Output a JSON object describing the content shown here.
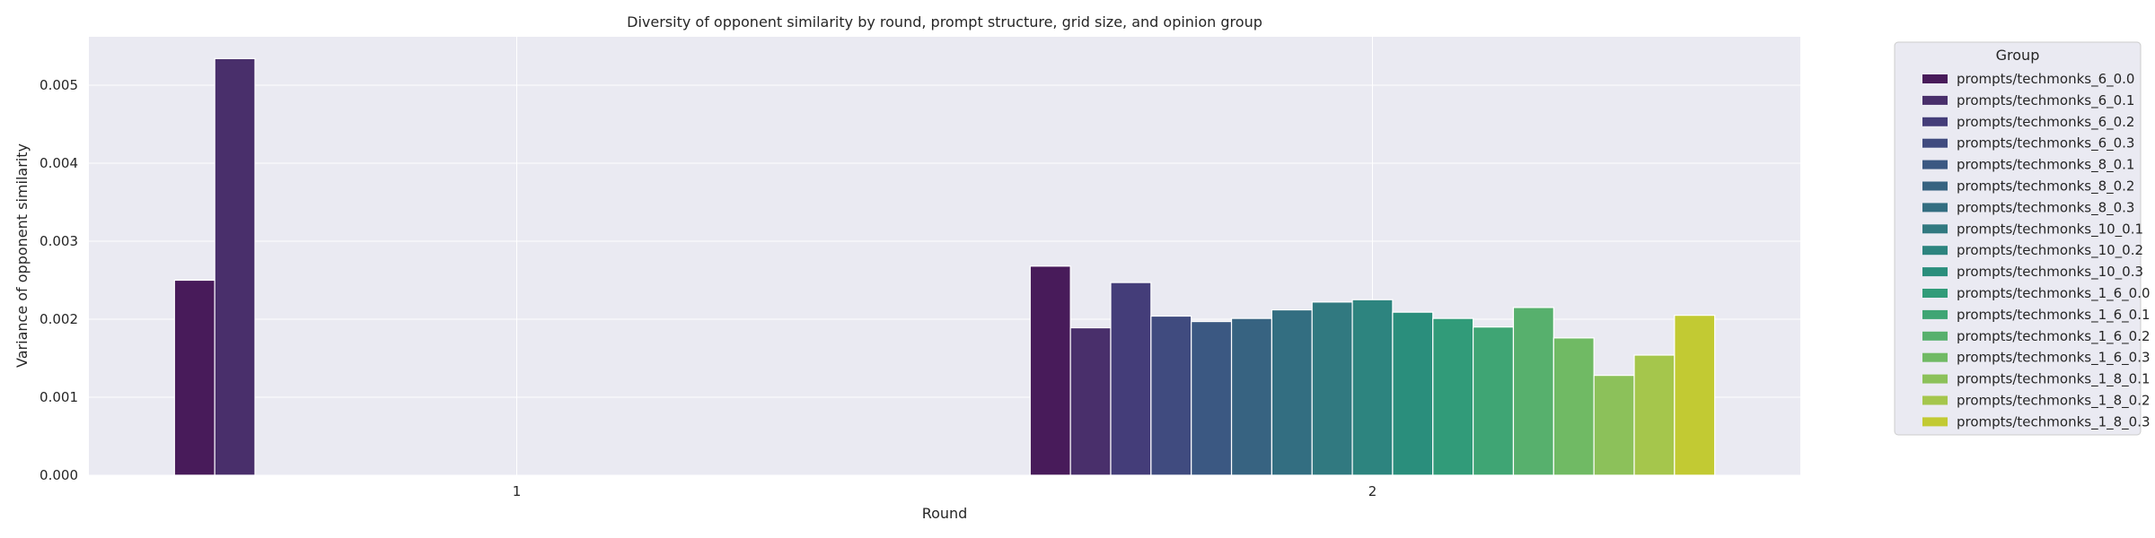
{
  "chart_data": {
    "type": "bar",
    "title": "Diversity of opponent similarity by round, prompt structure, grid size, and opinion group",
    "xlabel": "Round",
    "ylabel": "Variance of opponent similarity",
    "ylim": [
      0,
      0.00562
    ],
    "yticks": [
      "0.000",
      "0.001",
      "0.002",
      "0.003",
      "0.004",
      "0.005"
    ],
    "categories": [
      "1",
      "2"
    ],
    "grid": true,
    "legend_title": "Group",
    "legend_position": "outside-right",
    "bars": [
      {
        "group": "prompts/techmonks_6_0.0",
        "round": "1",
        "slot": 0,
        "value": 0.0025
      },
      {
        "group": "prompts/techmonks_6_0.1",
        "round": "1",
        "slot": 1,
        "value": 0.00534
      },
      {
        "group": "prompts/techmonks_6_0.0",
        "round": "2",
        "slot": 0,
        "value": 0.00268
      },
      {
        "group": "prompts/techmonks_6_0.1",
        "round": "2",
        "slot": 1,
        "value": 0.00189
      },
      {
        "group": "prompts/techmonks_6_0.2",
        "round": "2",
        "slot": 2,
        "value": 0.00247
      },
      {
        "group": "prompts/techmonks_6_0.3",
        "round": "2",
        "slot": 3,
        "value": 0.00204
      },
      {
        "group": "prompts/techmonks_8_0.1",
        "round": "2",
        "slot": 4,
        "value": 0.00197
      },
      {
        "group": "prompts/techmonks_8_0.2",
        "round": "2",
        "slot": 5,
        "value": 0.00201
      },
      {
        "group": "prompts/techmonks_8_0.3",
        "round": "2",
        "slot": 6,
        "value": 0.00212
      },
      {
        "group": "prompts/techmonks_10_0.1",
        "round": "2",
        "slot": 7,
        "value": 0.00222
      },
      {
        "group": "prompts/techmonks_10_0.2",
        "round": "2",
        "slot": 8,
        "value": 0.00225
      },
      {
        "group": "prompts/techmonks_10_0.3",
        "round": "2",
        "slot": 9,
        "value": 0.00209
      },
      {
        "group": "prompts/techmonks_1_6_0.0",
        "round": "2",
        "slot": 10,
        "value": 0.00201
      },
      {
        "group": "prompts/techmonks_1_6_0.1",
        "round": "2",
        "slot": 11,
        "value": 0.0019
      },
      {
        "group": "prompts/techmonks_1_6_0.2",
        "round": "2",
        "slot": 12,
        "value": 0.00215
      },
      {
        "group": "prompts/techmonks_1_6_0.3",
        "round": "2",
        "slot": 13,
        "value": 0.00176
      },
      {
        "group": "prompts/techmonks_1_8_0.1",
        "round": "2",
        "slot": 14,
        "value": 0.00128
      },
      {
        "group": "prompts/techmonks_1_8_0.2",
        "round": "2",
        "slot": 15,
        "value": 0.00154
      },
      {
        "group": "prompts/techmonks_1_8_0.3",
        "round": "2",
        "slot": 16,
        "value": 0.00205
      }
    ],
    "series": [
      {
        "name": "prompts/techmonks_6_0.0",
        "color": "#481b5a"
      },
      {
        "name": "prompts/techmonks_6_0.1",
        "color": "#492f6b"
      },
      {
        "name": "prompts/techmonks_6_0.2",
        "color": "#443d79"
      },
      {
        "name": "prompts/techmonks_6_0.3",
        "color": "#404b7f"
      },
      {
        "name": "prompts/techmonks_8_0.1",
        "color": "#3b5882"
      },
      {
        "name": "prompts/techmonks_8_0.2",
        "color": "#376381"
      },
      {
        "name": "prompts/techmonks_8_0.3",
        "color": "#336e81"
      },
      {
        "name": "prompts/techmonks_10_0.1",
        "color": "#317980"
      },
      {
        "name": "prompts/techmonks_10_0.2",
        "color": "#2d847f"
      },
      {
        "name": "prompts/techmonks_10_0.3",
        "color": "#2a8e7c"
      },
      {
        "name": "prompts/techmonks_1_6_0.0",
        "color": "#319b79"
      },
      {
        "name": "prompts/techmonks_1_6_0.1",
        "color": "#3fa574"
      },
      {
        "name": "prompts/techmonks_1_6_0.2",
        "color": "#57b06d"
      },
      {
        "name": "prompts/techmonks_1_6_0.3",
        "color": "#70ba64"
      },
      {
        "name": "prompts/techmonks_1_8_0.1",
        "color": "#8cc15a"
      },
      {
        "name": "prompts/techmonks_1_8_0.2",
        "color": "#a5c64c"
      },
      {
        "name": "prompts/techmonks_1_8_0.3",
        "color": "#c2ca33"
      }
    ]
  },
  "style": {
    "plot_background": "#eaeaf2",
    "grid_color": "#ffffff",
    "legend_background": "#eaeaf2",
    "legend_border": "#cccccc"
  }
}
